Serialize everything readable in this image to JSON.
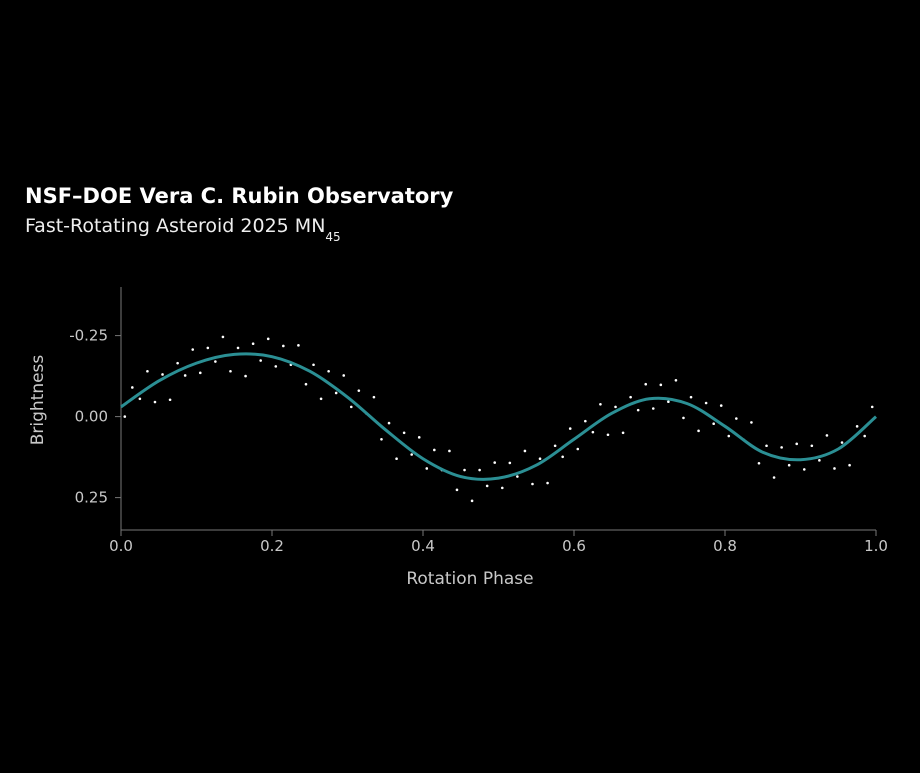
{
  "chart_data": {
    "type": "scatter",
    "title": "NSF–DOE Vera C. Rubin Observatory",
    "subtitle": "Fast-Rotating Asteroid 2025 MN",
    "subtitle_subscript": "45",
    "xlabel": "Rotation Phase",
    "ylabel": "Brightness",
    "xlim": [
      0,
      1
    ],
    "ylim": [
      -0.4,
      0.35
    ],
    "y_inverted": true,
    "xticks": [
      {
        "value": 0,
        "label": "0.0"
      },
      0.2,
      0.4,
      0.6,
      0.8,
      {
        "value": 1,
        "label": "1.0"
      }
    ],
    "yticks": [
      -0.25,
      {
        "value": 0,
        "label": "0.00"
      },
      0.25
    ],
    "series": [
      {
        "type": "scatter",
        "color": "#ffffff",
        "x": [
          0.005,
          0.015,
          0.025,
          0.035,
          0.045,
          0.055,
          0.065,
          0.075,
          0.085,
          0.095,
          0.105,
          0.115,
          0.125,
          0.135,
          0.145,
          0.155,
          0.165,
          0.175,
          0.185,
          0.195,
          0.205,
          0.215,
          0.225,
          0.235,
          0.245,
          0.255,
          0.265,
          0.275,
          0.285,
          0.295,
          0.305,
          0.315,
          0.325,
          0.335,
          0.345,
          0.355,
          0.365,
          0.375,
          0.385,
          0.395,
          0.405,
          0.415,
          0.425,
          0.435,
          0.445,
          0.455,
          0.465,
          0.475,
          0.485,
          0.495,
          0.505,
          0.515,
          0.525,
          0.535,
          0.545,
          0.555,
          0.565,
          0.575,
          0.585,
          0.595,
          0.605,
          0.615,
          0.625,
          0.635,
          0.645,
          0.655,
          0.665,
          0.675,
          0.685,
          0.695,
          0.705,
          0.715,
          0.725,
          0.735,
          0.745,
          0.755,
          0.765,
          0.775,
          0.785,
          0.795,
          0.805,
          0.815,
          0.825,
          0.835,
          0.845,
          0.855,
          0.865,
          0.875,
          0.885,
          0.895,
          0.905,
          0.915,
          0.925,
          0.935,
          0.945,
          0.955,
          0.965,
          0.975,
          0.985,
          0.995
        ],
        "values": [
          0.0,
          -0.09,
          -0.055,
          -0.14,
          -0.045,
          -0.13,
          -0.052,
          -0.165,
          -0.127,
          -0.207,
          -0.135,
          -0.212,
          -0.17,
          -0.246,
          -0.14,
          -0.212,
          -0.125,
          -0.225,
          -0.173,
          -0.24,
          -0.155,
          -0.218,
          -0.16,
          -0.22,
          -0.1,
          -0.16,
          -0.055,
          -0.14,
          -0.073,
          -0.127,
          -0.03,
          -0.08,
          -0.01,
          -0.06,
          0.07,
          0.02,
          0.13,
          0.05,
          0.117,
          0.064,
          0.16,
          0.103,
          0.165,
          0.106,
          0.226,
          0.165,
          0.26,
          0.165,
          0.214,
          0.142,
          0.22,
          0.143,
          0.185,
          0.106,
          0.208,
          0.13,
          0.205,
          0.09,
          0.124,
          0.037,
          0.1,
          0.014,
          0.048,
          -0.038,
          0.056,
          -0.03,
          0.05,
          -0.06,
          -0.02,
          -0.1,
          -0.025,
          -0.098,
          -0.046,
          -0.112,
          0.004,
          -0.06,
          0.044,
          -0.042,
          0.022,
          -0.034,
          0.06,
          0.006,
          0.072,
          0.018,
          0.144,
          0.09,
          0.188,
          0.095,
          0.15,
          0.084,
          0.163,
          0.09,
          0.135,
          0.058,
          0.16,
          0.08,
          0.15,
          0.03,
          0.06,
          -0.03
        ]
      },
      {
        "type": "line",
        "color": "#2b8f94",
        "x": [
          0,
          0.05,
          0.1,
          0.15,
          0.2,
          0.25,
          0.3,
          0.35,
          0.4,
          0.45,
          0.5,
          0.55,
          0.6,
          0.65,
          0.7,
          0.75,
          0.8,
          0.85,
          0.9,
          0.95,
          1.0
        ],
        "values": [
          -0.03,
          -0.11,
          -0.165,
          -0.192,
          -0.185,
          -0.14,
          -0.06,
          0.04,
          0.13,
          0.185,
          0.19,
          0.15,
          0.07,
          -0.01,
          -0.055,
          -0.04,
          0.03,
          0.11,
          0.133,
          0.1,
          0.0
        ]
      }
    ]
  }
}
